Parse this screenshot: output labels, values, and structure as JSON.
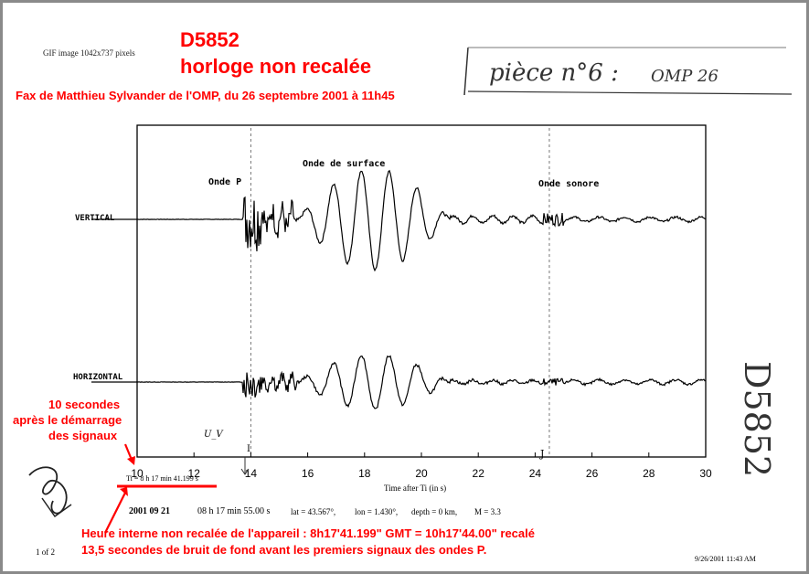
{
  "header": {
    "gif_info": "GIF image 1042x737 pixels",
    "doc_id": "D5852",
    "doc_subtitle": "horloge non recalée",
    "fax_line": "Fax de Matthieu Sylvander de l'OMP, du 26 septembre 2001 à 11h45",
    "handwritten_piece": "pièce n°6 :",
    "handwritten_omp": "OMP 26",
    "handwritten_side": "D5852"
  },
  "chart_data": {
    "type": "line",
    "xlabel": "Time after Ti (in s)",
    "xlim": [
      10,
      30
    ],
    "xticks": [
      10,
      12,
      14,
      16,
      18,
      20,
      22,
      24,
      26,
      28,
      30
    ],
    "series": [
      {
        "name": "VERTICAL"
      },
      {
        "name": "HORIZONTAL"
      }
    ],
    "annotations": [
      {
        "text": "Onde P",
        "x": 13.8
      },
      {
        "text": "Onde de surface",
        "x": 17.2
      },
      {
        "text": "Onde sonore",
        "x": 24.4
      }
    ],
    "markers": [
      {
        "text": "U_V",
        "x": 12.6
      },
      {
        "text": "I",
        "x": 14.0
      },
      {
        "text": "J",
        "x": 24.5
      }
    ],
    "ti_label": "Ti = 8 h  17 min  41.199 s",
    "color": "#000000"
  },
  "info_line": {
    "date": "2001 09 21",
    "time": "08 h  17 min  55.00 s",
    "lat": "lat = 43.567°,",
    "lon": "lon = 1.430°,",
    "depth": "depth = 0 km,",
    "mag": "M = 3.3"
  },
  "annotations_red": {
    "seconds_note": [
      "10 secondes",
      "après le démarrage",
      "des signaux"
    ],
    "bottom_line_1": "Heure interne non recalée de l'appareil : 8h17'41.199\" GMT = 10h17'44.00\" recalé",
    "bottom_line_2": "13,5 secondes de bruit de fond avant les premiers signaux des ondes P."
  },
  "footer": {
    "page": "1 of 2",
    "print_date": "9/26/2001 11:43 AM"
  }
}
